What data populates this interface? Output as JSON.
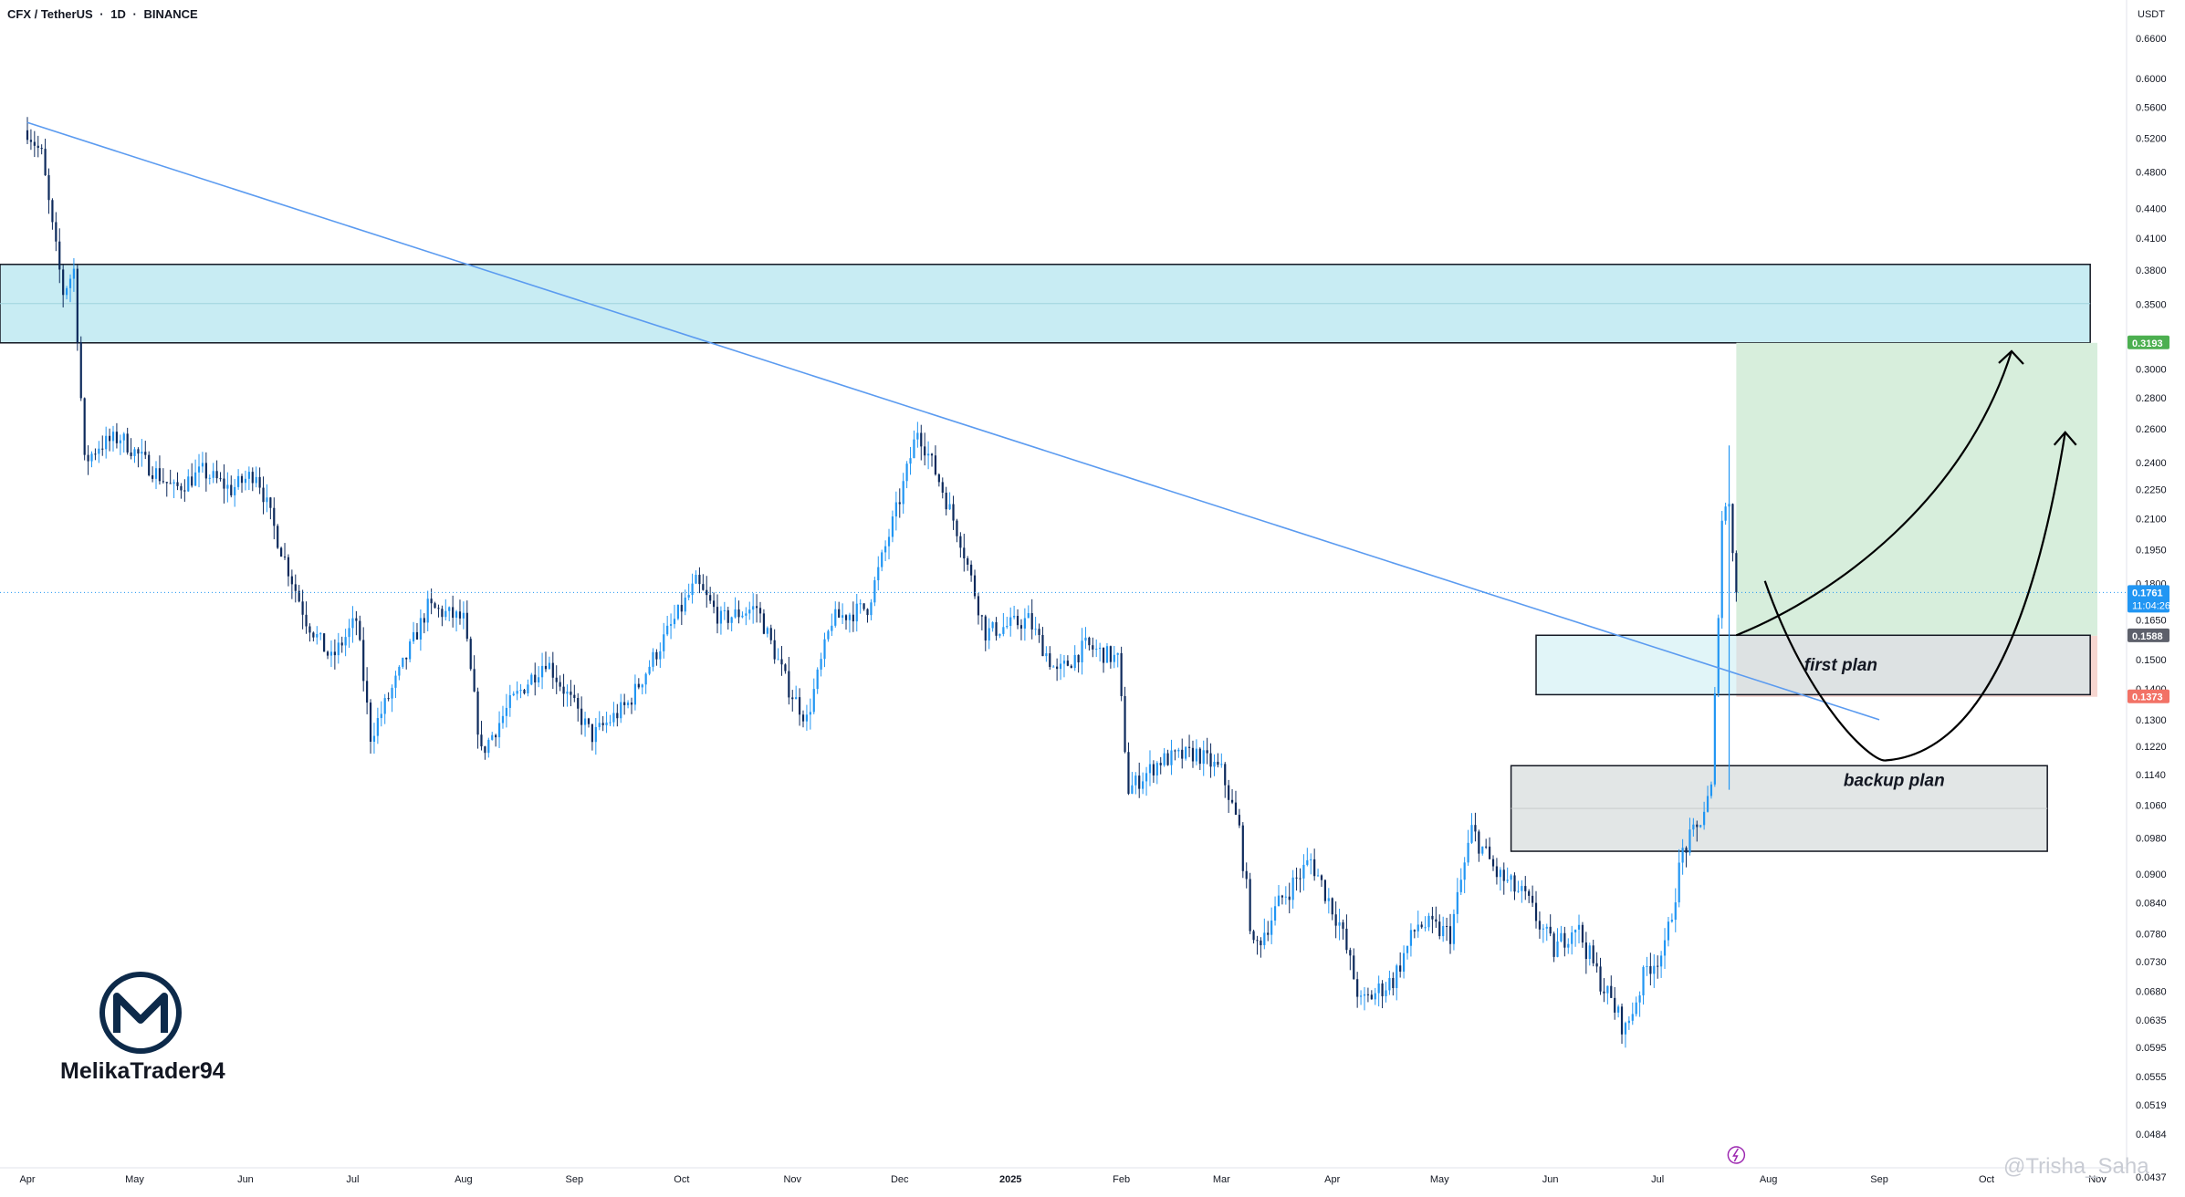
{
  "header": {
    "symbol": "CFX / TetherUS",
    "interval": "1D",
    "exchange": "BINANCE",
    "separator": "·"
  },
  "currency": "USDT",
  "author": "MelikaTrader94",
  "watermark": "@Trisha_Saha",
  "annotations": {
    "first_plan": "first plan",
    "backup_plan": "backup plan"
  },
  "colors": {
    "bull": "#2196f3",
    "bear": "#0d2a5c",
    "trendline": "#5b9bf0",
    "resistance_zone": "#c8ecf3",
    "target_zone": "#d7eedc",
    "stop_zone": "#f6d6d0",
    "first_plan_zone": "#c8ecf3",
    "backup_plan_zone": "#e2e6e6",
    "price_tag": "#2196f3",
    "target_tag": "#4caf50",
    "stop_tag": "#f27266",
    "entry_tag": "#5d606b"
  },
  "chart_data": {
    "type": "candlestick",
    "title": "CFX / TetherUS · 1D · BINANCE",
    "y_scale": "log",
    "ylim": [
      0.0437,
      0.66
    ],
    "y_ticks": [
      "0.6600",
      "0.6000",
      "0.5600",
      "0.5200",
      "0.4800",
      "0.4400",
      "0.4100",
      "0.3800",
      "0.3500",
      "0.3000",
      "0.2800",
      "0.2600",
      "0.2400",
      "0.2250",
      "0.2100",
      "0.1950",
      "0.1800",
      "0.1650",
      "0.1500",
      "0.1400",
      "0.1300",
      "0.1220",
      "0.1140",
      "0.1060",
      "0.0980",
      "0.0900",
      "0.0840",
      "0.0780",
      "0.0730",
      "0.0680",
      "0.0635",
      "0.0595",
      "0.0555",
      "0.0519",
      "0.0484",
      "0.0437"
    ],
    "x_ticks": [
      "Apr",
      "May",
      "Jun",
      "Jul",
      "Aug",
      "Sep",
      "Oct",
      "Nov",
      "Dec",
      "2025",
      "Feb",
      "Mar",
      "Apr",
      "May",
      "Jun",
      "Jul",
      "Aug",
      "Sep",
      "Oct",
      "Nov"
    ],
    "x_range": [
      "2024-04-01",
      "2025-11-01"
    ],
    "last_candle_date": "2025-07-23",
    "price_labels": {
      "current": "0.1761",
      "countdown": "11:04:26",
      "target": "0.3193",
      "entry": "0.1588",
      "stop": "0.1373"
    },
    "closes": [
      {
        "date": "2024-04-01",
        "close": 0.53
      },
      {
        "date": "2024-04-05",
        "close": 0.5
      },
      {
        "date": "2024-04-08",
        "close": 0.42
      },
      {
        "date": "2024-04-11",
        "close": 0.36
      },
      {
        "date": "2024-04-14",
        "close": 0.38
      },
      {
        "date": "2024-04-17",
        "close": 0.24
      },
      {
        "date": "2024-04-21",
        "close": 0.25
      },
      {
        "date": "2024-04-27",
        "close": 0.255
      },
      {
        "date": "2024-05-04",
        "close": 0.24
      },
      {
        "date": "2024-05-12",
        "close": 0.225
      },
      {
        "date": "2024-05-20",
        "close": 0.235
      },
      {
        "date": "2024-05-28",
        "close": 0.225
      },
      {
        "date": "2024-06-04",
        "close": 0.235
      },
      {
        "date": "2024-06-10",
        "close": 0.2
      },
      {
        "date": "2024-06-18",
        "close": 0.165
      },
      {
        "date": "2024-06-25",
        "close": 0.15
      },
      {
        "date": "2024-07-02",
        "close": 0.165
      },
      {
        "date": "2024-07-06",
        "close": 0.125
      },
      {
        "date": "2024-07-14",
        "close": 0.145
      },
      {
        "date": "2024-07-22",
        "close": 0.17
      },
      {
        "date": "2024-08-01",
        "close": 0.165
      },
      {
        "date": "2024-08-06",
        "close": 0.12
      },
      {
        "date": "2024-08-14",
        "close": 0.135
      },
      {
        "date": "2024-08-24",
        "close": 0.15
      },
      {
        "date": "2024-09-06",
        "close": 0.125
      },
      {
        "date": "2024-09-16",
        "close": 0.135
      },
      {
        "date": "2024-09-27",
        "close": 0.16
      },
      {
        "date": "2024-10-05",
        "close": 0.18
      },
      {
        "date": "2024-10-12",
        "close": 0.165
      },
      {
        "date": "2024-10-22",
        "close": 0.17
      },
      {
        "date": "2024-10-31",
        "close": 0.14
      },
      {
        "date": "2024-11-05",
        "close": 0.13
      },
      {
        "date": "2024-11-12",
        "close": 0.165
      },
      {
        "date": "2024-11-22",
        "close": 0.17
      },
      {
        "date": "2024-12-01",
        "close": 0.22
      },
      {
        "date": "2024-12-06",
        "close": 0.26
      },
      {
        "date": "2024-12-12",
        "close": 0.23
      },
      {
        "date": "2024-12-18",
        "close": 0.2
      },
      {
        "date": "2024-12-25",
        "close": 0.16
      },
      {
        "date": "2025-01-06",
        "close": 0.165
      },
      {
        "date": "2025-01-14",
        "close": 0.145
      },
      {
        "date": "2025-01-22",
        "close": 0.155
      },
      {
        "date": "2025-01-31",
        "close": 0.15
      },
      {
        "date": "2025-02-03",
        "close": 0.11
      },
      {
        "date": "2025-02-12",
        "close": 0.118
      },
      {
        "date": "2025-02-22",
        "close": 0.12
      },
      {
        "date": "2025-03-01",
        "close": 0.115
      },
      {
        "date": "2025-03-06",
        "close": 0.1
      },
      {
        "date": "2025-03-10",
        "close": 0.075
      },
      {
        "date": "2025-03-18",
        "close": 0.085
      },
      {
        "date": "2025-03-26",
        "close": 0.093
      },
      {
        "date": "2025-04-03",
        "close": 0.08
      },
      {
        "date": "2025-04-09",
        "close": 0.066
      },
      {
        "date": "2025-04-18",
        "close": 0.07
      },
      {
        "date": "2025-04-25",
        "close": 0.08
      },
      {
        "date": "2025-05-04",
        "close": 0.078
      },
      {
        "date": "2025-05-10",
        "close": 0.1
      },
      {
        "date": "2025-05-17",
        "close": 0.09
      },
      {
        "date": "2025-05-25",
        "close": 0.085
      },
      {
        "date": "2025-06-02",
        "close": 0.075
      },
      {
        "date": "2025-06-08",
        "close": 0.08
      },
      {
        "date": "2025-06-14",
        "close": 0.071
      },
      {
        "date": "2025-06-22",
        "close": 0.062
      },
      {
        "date": "2025-06-28",
        "close": 0.072
      },
      {
        "date": "2025-07-03",
        "close": 0.075
      },
      {
        "date": "2025-07-08",
        "close": 0.095
      },
      {
        "date": "2025-07-12",
        "close": 0.1
      },
      {
        "date": "2025-07-16",
        "close": 0.11
      },
      {
        "date": "2025-07-19",
        "close": 0.21
      },
      {
        "date": "2025-07-21",
        "close": 0.22
      },
      {
        "date": "2025-07-23",
        "close": 0.1761
      }
    ],
    "trendline": {
      "from": {
        "date": "2024-04-01",
        "price": 0.54
      },
      "to": {
        "date": "2025-09-01",
        "price": 0.13
      }
    },
    "zones": {
      "resistance": {
        "from": "2024-04-01",
        "to": "2025-10-30",
        "low": 0.3193,
        "high": 0.385
      },
      "target": {
        "from": "2025-07-23",
        "to": "2025-11-01",
        "low": 0.1588,
        "high": 0.3193
      },
      "stop": {
        "from": "2025-07-23",
        "to": "2025-11-01",
        "low": 0.1373,
        "high": 0.1588
      },
      "first_plan": {
        "from": "2025-05-28",
        "to": "2025-10-30",
        "low": 0.138,
        "high": 0.159
      },
      "backup_plan": {
        "from": "2025-05-21",
        "to": "2025-10-18",
        "low": 0.095,
        "high": 0.1165
      }
    }
  }
}
